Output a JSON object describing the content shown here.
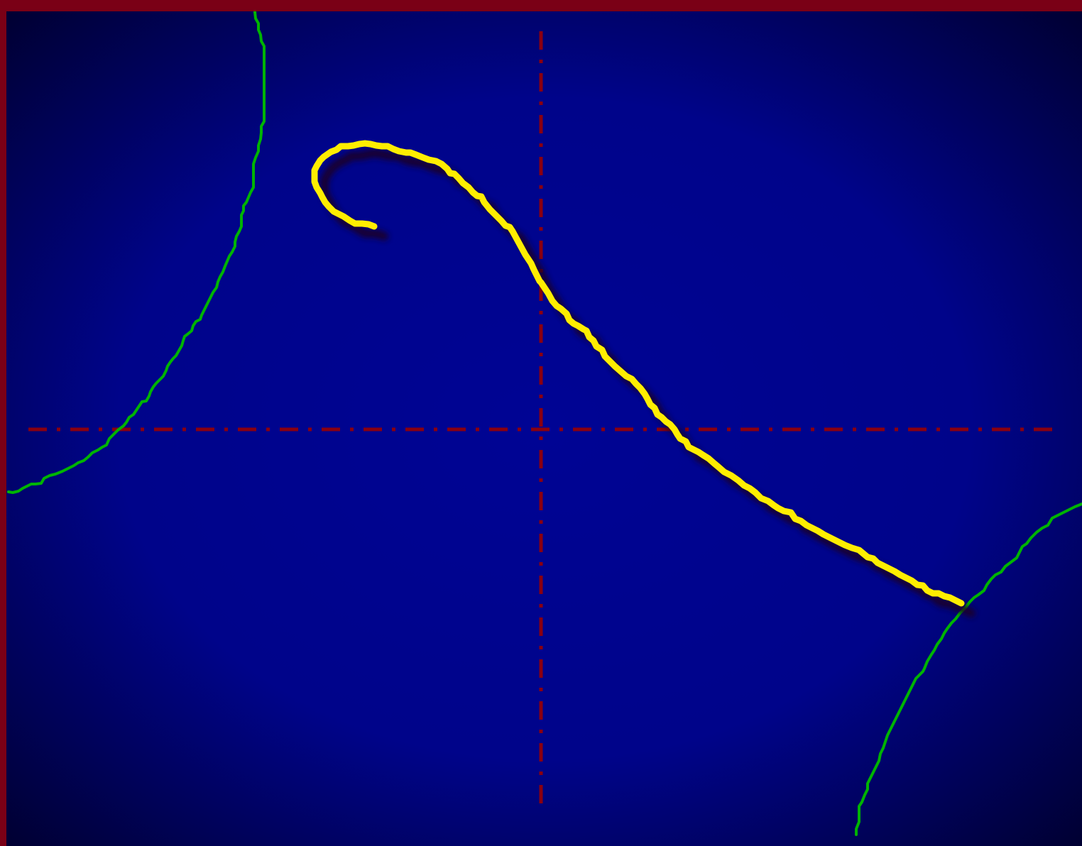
{
  "frame": {
    "border_color": "#7a0016"
  },
  "canvas": {
    "background_center": "#000494",
    "background_edge": "#00002e"
  },
  "axes": {
    "color": "#8a0010",
    "style": "dash-dot"
  },
  "curves": {
    "separatrix_color": "#00b400",
    "trajectory_color": "#ffee00",
    "trajectory_shadow_color": "#1a0020"
  }
}
